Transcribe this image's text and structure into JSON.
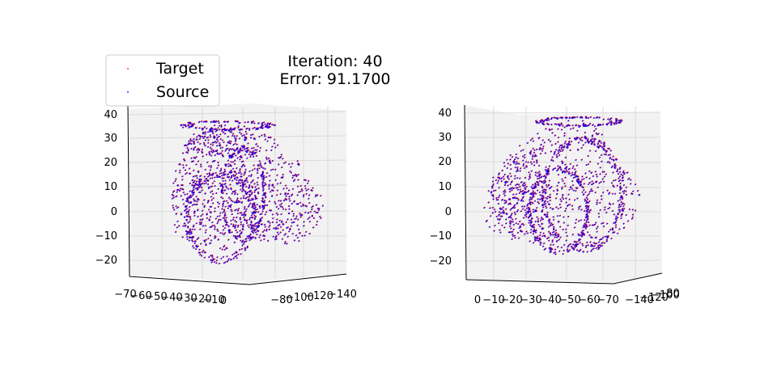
{
  "figure": {
    "title_line1": "Iteration: 40",
    "title_line2": "Error: 91.1700"
  },
  "legend": {
    "items": [
      {
        "label": "Target",
        "color": "#ff0000",
        "marker": "point"
      },
      {
        "label": "Source",
        "color": "#0000ff",
        "marker": "point"
      }
    ]
  },
  "chart_data": [
    {
      "type": "scatter",
      "projection": "3d",
      "series": [
        {
          "name": "Target",
          "color": "#ff0000"
        },
        {
          "name": "Source",
          "color": "#0000ff"
        }
      ],
      "z_ticks": [
        "40",
        "30",
        "20",
        "10",
        "0",
        "−10",
        "−20"
      ],
      "x_ticks": [
        "−70",
        "−60",
        "−50",
        "−40",
        "−30",
        "−20",
        "−10",
        "0"
      ],
      "y_ticks": [
        "−80",
        "−100",
        "−120",
        "−140"
      ],
      "grid": true
    },
    {
      "type": "scatter",
      "projection": "3d",
      "series": [
        {
          "name": "Target",
          "color": "#ff0000"
        },
        {
          "name": "Source",
          "color": "#0000ff"
        }
      ],
      "z_ticks": [
        "40",
        "30",
        "20",
        "10",
        "0",
        "−10",
        "−20"
      ],
      "x_ticks": [
        "0",
        "−10",
        "−20",
        "−30",
        "−40",
        "−50",
        "−60",
        "−70"
      ],
      "y_ticks": [
        "−140",
        "−120",
        "−100",
        "−80"
      ],
      "grid": true
    }
  ]
}
